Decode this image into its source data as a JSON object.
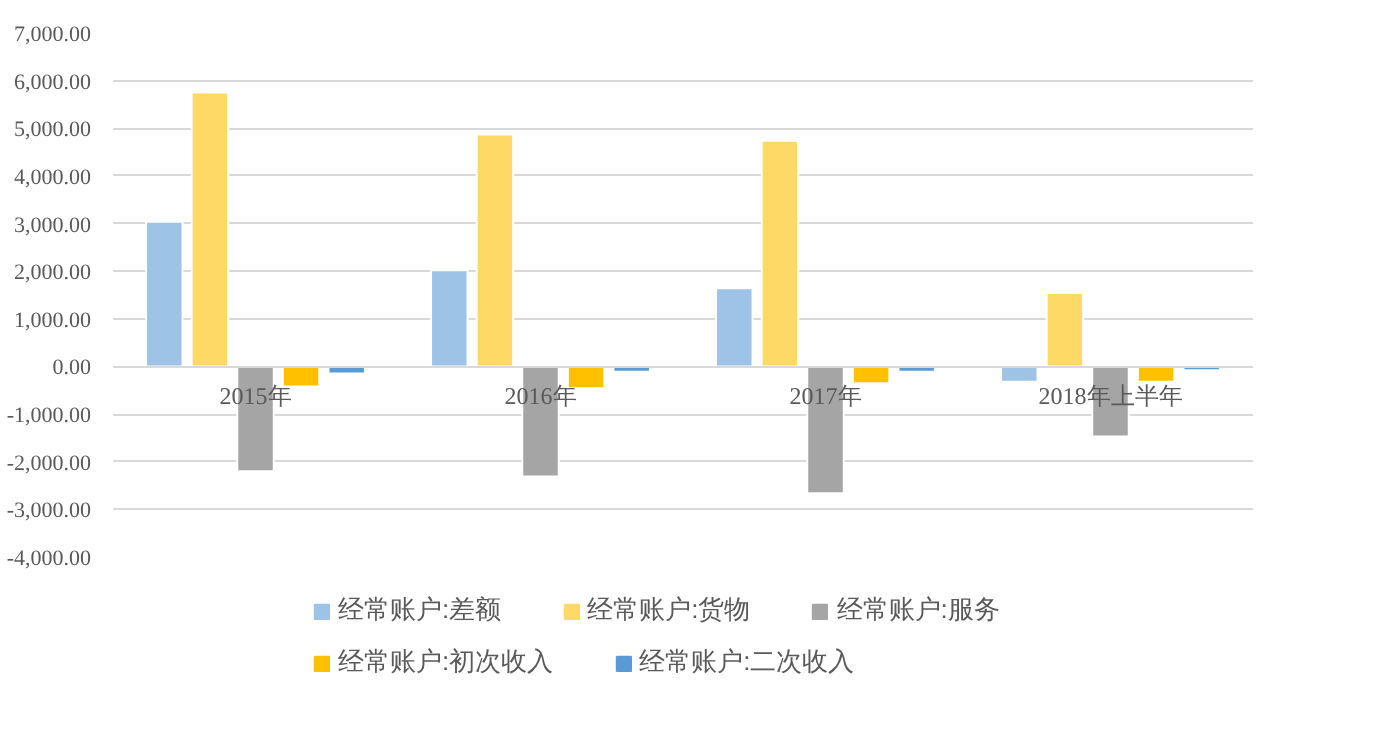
{
  "chart_data": {
    "type": "bar",
    "categories": [
      "2015年",
      "2016年",
      "2017年",
      "2018年上半年"
    ],
    "series": [
      {
        "name": "经常账户:差额",
        "color": "#9dc3e6",
        "values": [
          3040,
          2020,
          1640,
          -320
        ]
      },
      {
        "name": "经常账户:货物",
        "color": "#ffd966",
        "values": [
          5750,
          4870,
          4740,
          1540
        ]
      },
      {
        "name": "经常账户:服务",
        "color": "#a5a5a5",
        "values": [
          -2200,
          -2310,
          -2660,
          -1470
        ]
      },
      {
        "name": "经常账户:初次收入",
        "color": "#ffc000",
        "values": [
          -420,
          -460,
          -350,
          -320
        ]
      },
      {
        "name": "经常账户:二次收入",
        "color": "#5b9bd5",
        "values": [
          -150,
          -110,
          -110,
          -80
        ]
      }
    ],
    "ylim": [
      -4000,
      7000
    ],
    "yticks": [
      {
        "value": -4000,
        "label": "-4,000.00"
      },
      {
        "value": -3000,
        "label": "-3,000.00"
      },
      {
        "value": -2000,
        "label": "-2,000.00"
      },
      {
        "value": -1000,
        "label": "-1,000.00"
      },
      {
        "value": 0,
        "label": "0.00"
      },
      {
        "value": 1000,
        "label": "1,000.00"
      },
      {
        "value": 2000,
        "label": "2,000.00"
      },
      {
        "value": 3000,
        "label": "3,000.00"
      },
      {
        "value": 4000,
        "label": "4,000.00"
      },
      {
        "value": 5000,
        "label": "5,000.00"
      },
      {
        "value": 6000,
        "label": "6,000.00"
      },
      {
        "value": 7000,
        "label": "7,000.00"
      }
    ],
    "grid": "y",
    "legend": "bottom"
  }
}
